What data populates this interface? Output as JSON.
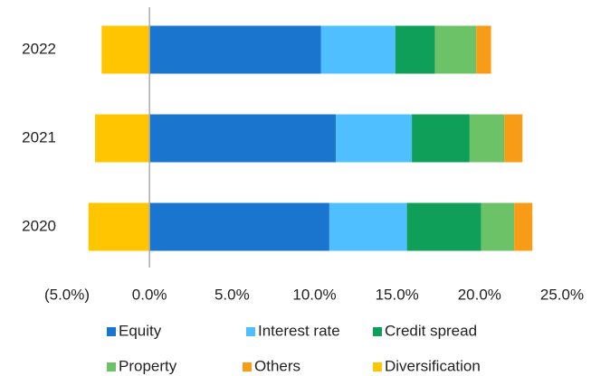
{
  "chart_data": {
    "type": "stacked_barh",
    "categories": [
      "2022",
      "2021",
      "2020"
    ],
    "series": [
      {
        "name": "Equity",
        "color": "#1a75cf",
        "values": [
          10.4,
          11.3,
          10.9
        ]
      },
      {
        "name": "Interest rate",
        "color": "#4fbfff",
        "values": [
          4.5,
          4.6,
          4.7
        ]
      },
      {
        "name": "Credit spread",
        "color": "#0f9f58",
        "values": [
          2.4,
          3.5,
          4.5
        ]
      },
      {
        "name": "Property",
        "color": "#6cc267",
        "values": [
          2.5,
          2.1,
          2.0
        ]
      },
      {
        "name": "Others",
        "color": "#f89b16",
        "values": [
          0.9,
          1.1,
          1.1
        ]
      },
      {
        "name": "Diversification",
        "color": "#ffc600",
        "values": [
          -2.9,
          -3.3,
          -3.7
        ]
      }
    ],
    "xlim": [
      -5,
      25
    ],
    "xticks": [
      {
        "value": -5,
        "label": "(5.0%)"
      },
      {
        "value": 0,
        "label": "0.0%"
      },
      {
        "value": 5,
        "label": "5.0%"
      },
      {
        "value": 10,
        "label": "10.0%"
      },
      {
        "value": 15,
        "label": "15.0%"
      },
      {
        "value": 20,
        "label": "20.0%"
      },
      {
        "value": 25,
        "label": "25.0%"
      }
    ],
    "legend": "bottom"
  }
}
